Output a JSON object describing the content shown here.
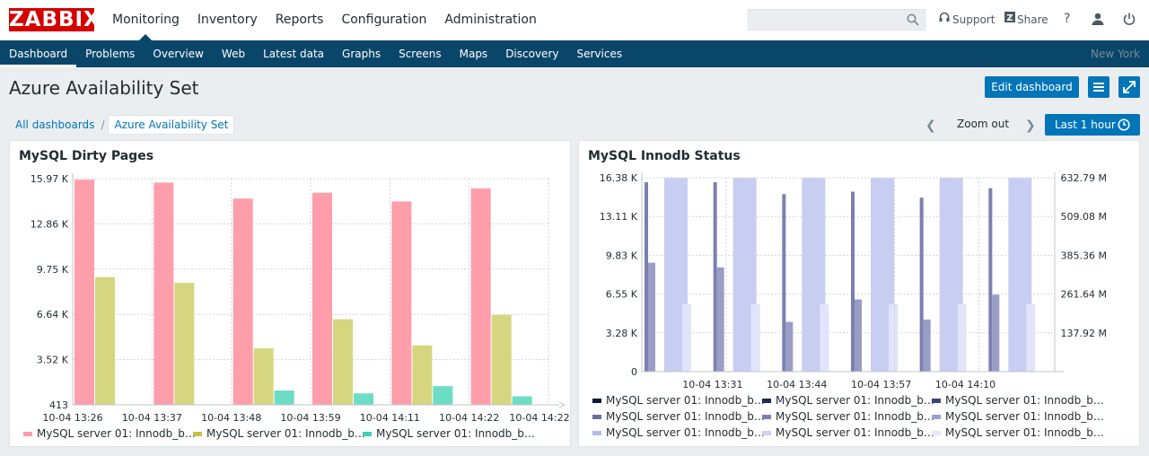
{
  "header": {
    "logo": "ZABBIX",
    "menu": [
      "Monitoring",
      "Inventory",
      "Reports",
      "Configuration",
      "Administration"
    ],
    "active_menu": "Monitoring",
    "support": "Support",
    "share": "Share",
    "help": "?"
  },
  "submenu": {
    "items": [
      "Dashboard",
      "Problems",
      "Overview",
      "Web",
      "Latest data",
      "Graphs",
      "Screens",
      "Maps",
      "Discovery",
      "Services"
    ],
    "active": "Dashboard",
    "location": "New York"
  },
  "page": {
    "title": "Azure Availability Set",
    "edit_button": "Edit dashboard",
    "breadcrumb": [
      "All dashboards",
      "Azure Availability Set"
    ],
    "zoom_out": "Zoom out",
    "time_button": "Last 1 hour"
  },
  "widgets": [
    {
      "title": "MySQL Dirty Pages",
      "chart_data": {
        "type": "bar",
        "y_ticks": [
          "15.97 K",
          "12.86 K",
          "9.75 K",
          "6.64 K",
          "3.52 K",
          "413"
        ],
        "ylim": [
          413,
          15970
        ],
        "x_ticks": [
          "10-04 13:26",
          "10-04 13:37",
          "10-04 13:48",
          "10-04 13:59",
          "10-04 14:11",
          "10-04 14:22"
        ],
        "series": [
          {
            "name": "MySQL server 01: Innodb_b…",
            "color": "#ff9eab",
            "values": [
              15900,
              15700,
              14600,
              15000,
              14400,
              15300
            ]
          },
          {
            "name": "MySQL server 01: Innodb_b…",
            "color": "#d6d680",
            "values": [
              9200,
              8800,
              4300,
              6300,
              4500,
              6600
            ]
          },
          {
            "name": "MySQL server 01: Innodb_b…",
            "color": "#6dddc5",
            "values": [
              null,
              null,
              1400,
              1200,
              1700,
              1000
            ]
          }
        ]
      }
    },
    {
      "title": "MySQL Innodb Status",
      "chart_data": {
        "type": "bar",
        "y_ticks_left": [
          "16.38 K",
          "13.11 K",
          "9.83 K",
          "6.55 K",
          "3.28 K",
          "0"
        ],
        "y_ticks_right": [
          "632.79 M",
          "509.08 M",
          "385.36 M",
          "261.64 M",
          "137.92 M"
        ],
        "ylim_left": [
          0,
          16380
        ],
        "ylim_right": [
          14200000,
          632790000
        ],
        "x_ticks": [
          "10-04 13:31",
          "10-04 13:44",
          "10-04 13:57",
          "10-04 14:10"
        ],
        "series": [
          {
            "name": "MySQL server 01: Innodb_b…",
            "color": "#1c2442",
            "axis": "left",
            "values": [
              16000,
              16000,
              15000,
              15200,
              14700,
              15500
            ]
          },
          {
            "name": "MySQL server 01: Innodb_b…",
            "color": "#7c80b0",
            "axis": "left",
            "values": [
              9200,
              8800,
              4200,
              6100,
              4400,
              6500
            ]
          },
          {
            "name": "MySQL server 01: Innodb_b…",
            "color": "#c8cdf2",
            "axis": "right",
            "values": [
              632000000,
              632000000,
              632000000,
              632000000,
              632000000,
              632000000
            ]
          },
          {
            "name": "MySQL server 01: Innodb_b…",
            "color": "#e1e4fa",
            "axis": "right",
            "values": [
              230000000,
              230000000,
              230000000,
              230000000,
              230000000,
              230000000
            ]
          }
        ],
        "legend": [
          [
            "MySQL server 01: Innodb_b…",
            "MySQL server 01: Innodb_b…",
            "MySQL server 01: Innodb_b…"
          ],
          [
            "MySQL server 01: Innodb_b…",
            "MySQL server 01: Innodb_b…",
            "MySQL server 01: Innodb_b…"
          ],
          [
            "MySQL server 01: Innodb_b…",
            "MySQL server 01: Innodb_b…",
            "MySQL server 01: Innodb_b…"
          ]
        ],
        "legend_colors": [
          [
            "#101a3a",
            "#1c2a55",
            "#3a4578"
          ],
          [
            "#6a6f9e",
            "#7c80b0",
            "#9aa0cf"
          ],
          [
            "#b6bbea",
            "#cdd1f5",
            "#e6e8fb"
          ]
        ]
      }
    }
  ]
}
